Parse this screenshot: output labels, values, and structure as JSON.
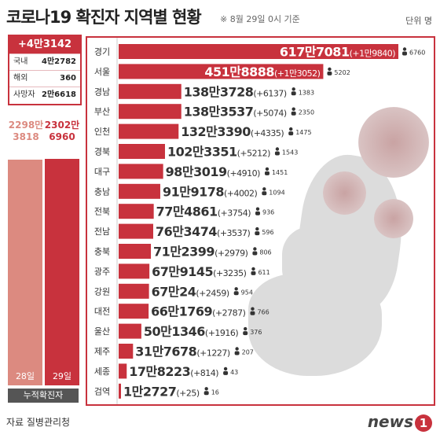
{
  "header": {
    "title": "코로나19 확진자 지역별 현황",
    "date_note": "※ 8월 29일 0시 기준",
    "unit": "단위 명"
  },
  "summary": {
    "total_new": "+4만3142",
    "rows": [
      {
        "label": "국내",
        "value": "4만2782"
      },
      {
        "label": "해외",
        "value": "360"
      },
      {
        "label": "사망자",
        "value": "2만6618"
      }
    ]
  },
  "cumulative": {
    "day28": {
      "line1": "2298만",
      "line2": "3818",
      "day": "28일",
      "value": 22983818,
      "color": "#dc8a80"
    },
    "day29": {
      "line1": "2302만",
      "line2": "6960",
      "day": "29일",
      "value": 23026960,
      "color": "#c8323d"
    },
    "footer": "누적확진자"
  },
  "chart_data": {
    "type": "bar",
    "orientation": "horizontal",
    "title": "코로나19 확진자 지역별 현황",
    "categories": [
      "경기",
      "서울",
      "경남",
      "부산",
      "인천",
      "경북",
      "대구",
      "충남",
      "전북",
      "전남",
      "충북",
      "광주",
      "강원",
      "대전",
      "울산",
      "제주",
      "세종",
      "검역"
    ],
    "values": [
      6177081,
      4518888,
      1383728,
      1383537,
      1323390,
      1023351,
      983019,
      919178,
      774861,
      763474,
      712399,
      679145,
      670024,
      661769,
      501346,
      317678,
      178223,
      12727
    ],
    "value_labels": [
      "617만7081",
      "451만8888",
      "138만3728",
      "138만3537",
      "132만3390",
      "102만3351",
      "98만3019",
      "91만9178",
      "77만4861",
      "76만3474",
      "71만2399",
      "67만9145",
      "67만24",
      "66만1769",
      "50만1346",
      "31만7678",
      "17만8223",
      "1만2727"
    ],
    "daily_new": [
      "+1만9840",
      "+1만3052",
      "+6137",
      "+5074",
      "+4335",
      "+5212",
      "+4910",
      "+4002",
      "+3754",
      "+3537",
      "+2979",
      "+3235",
      "+2459",
      "+2787",
      "+1916",
      "+1227",
      "+814",
      "+25"
    ],
    "deaths": [
      "6760",
      "5202",
      "1383",
      "2350",
      "1475",
      "1543",
      "1451",
      "1094",
      "936",
      "596",
      "806",
      "611",
      "954",
      "766",
      "376",
      "207",
      "43",
      "16"
    ],
    "bar_color": "#c8323d"
  },
  "footer": {
    "source": "자료 질병관리청",
    "logo": "news",
    "logo_mark": "1"
  }
}
